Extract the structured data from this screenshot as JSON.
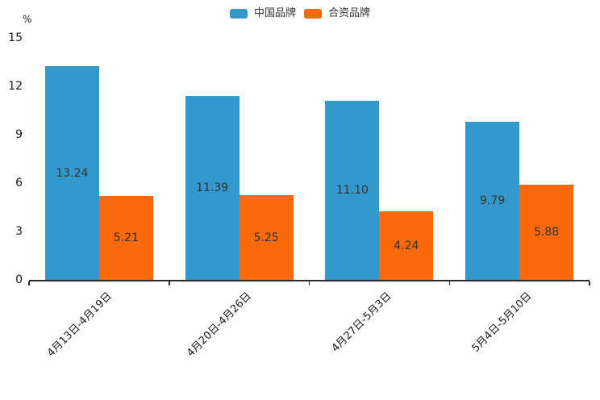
{
  "chart_data": {
    "type": "bar",
    "title": "",
    "unit": "%",
    "categories": [
      "4月13日-4月19日",
      "4月20日-4月26日",
      "4月27日-5月3日",
      "5月4日-5月10日"
    ],
    "series": [
      {
        "name": "中国品牌",
        "color": "#3398cc",
        "values": [
          13.24,
          11.39,
          11.1,
          9.79
        ],
        "labels": [
          "13.24",
          "11.39",
          "11.10",
          "9.79"
        ]
      },
      {
        "name": "合资品牌",
        "color": "#fb6a0a",
        "values": [
          5.21,
          5.25,
          4.24,
          5.88
        ],
        "labels": [
          "5.21",
          "5.25",
          "4.24",
          "5.88"
        ]
      }
    ],
    "ylim": [
      0,
      15
    ],
    "yticks": [
      0,
      3,
      6,
      9,
      12,
      15
    ],
    "xlabel": "",
    "ylabel": "%",
    "grid": false,
    "legend_position": "top-center",
    "value_label_position": "inside-center",
    "x_tick_rotation": 45,
    "axis_color": "#2a2a2a",
    "label_color": "#333333"
  }
}
